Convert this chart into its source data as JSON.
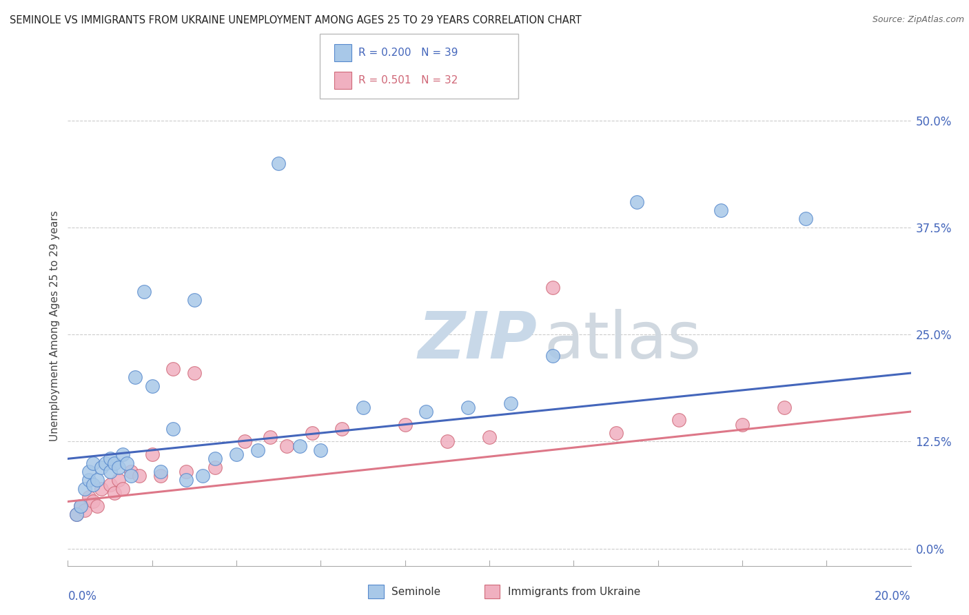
{
  "title": "SEMINOLE VS IMMIGRANTS FROM UKRAINE UNEMPLOYMENT AMONG AGES 25 TO 29 YEARS CORRELATION CHART",
  "source": "Source: ZipAtlas.com",
  "ylabel": "Unemployment Among Ages 25 to 29 years",
  "ytick_vals": [
    0.0,
    12.5,
    25.0,
    37.5,
    50.0
  ],
  "xlim": [
    0.0,
    20.0
  ],
  "ylim": [
    -2.0,
    54.0
  ],
  "r1": 0.2,
  "n1": 39,
  "r2": 0.501,
  "n2": 32,
  "color_blue": "#a8c8e8",
  "color_pink": "#f0b0c0",
  "color_blue_edge": "#5588cc",
  "color_pink_edge": "#d06878",
  "color_blue_line": "#4466bb",
  "color_pink_line": "#dd7788",
  "seminole_x": [
    0.2,
    0.3,
    0.4,
    0.5,
    0.5,
    0.6,
    0.6,
    0.7,
    0.8,
    0.9,
    1.0,
    1.0,
    1.1,
    1.2,
    1.3,
    1.4,
    1.5,
    1.6,
    1.8,
    2.0,
    2.2,
    2.5,
    2.8,
    3.0,
    3.2,
    3.5,
    4.0,
    4.5,
    5.0,
    5.5,
    6.0,
    7.0,
    8.5,
    9.5,
    10.5,
    11.5,
    13.5,
    15.5,
    17.5
  ],
  "seminole_y": [
    4.0,
    5.0,
    7.0,
    8.0,
    9.0,
    7.5,
    10.0,
    8.0,
    9.5,
    10.0,
    9.0,
    10.5,
    10.0,
    9.5,
    11.0,
    10.0,
    8.5,
    20.0,
    30.0,
    19.0,
    9.0,
    14.0,
    8.0,
    29.0,
    8.5,
    10.5,
    11.0,
    11.5,
    45.0,
    12.0,
    11.5,
    16.5,
    16.0,
    16.5,
    17.0,
    22.5,
    40.5,
    39.5,
    38.5
  ],
  "ukraine_x": [
    0.2,
    0.3,
    0.4,
    0.5,
    0.6,
    0.7,
    0.8,
    1.0,
    1.1,
    1.2,
    1.3,
    1.5,
    1.7,
    2.0,
    2.2,
    2.5,
    2.8,
    3.0,
    3.5,
    4.2,
    4.8,
    5.2,
    5.8,
    6.5,
    8.0,
    9.0,
    10.0,
    11.5,
    13.0,
    14.5,
    16.0,
    17.0
  ],
  "ukraine_y": [
    4.0,
    5.0,
    4.5,
    6.0,
    5.5,
    5.0,
    7.0,
    7.5,
    6.5,
    8.0,
    7.0,
    9.0,
    8.5,
    11.0,
    8.5,
    21.0,
    9.0,
    20.5,
    9.5,
    12.5,
    13.0,
    12.0,
    13.5,
    14.0,
    14.5,
    12.5,
    13.0,
    30.5,
    13.5,
    15.0,
    14.5,
    16.5
  ],
  "blue_line_x0": 0.0,
  "blue_line_y0": 10.5,
  "blue_line_x1": 20.0,
  "blue_line_y1": 20.5,
  "pink_line_x0": 0.0,
  "pink_line_y0": 5.5,
  "pink_line_x1": 20.0,
  "pink_line_y1": 16.0
}
